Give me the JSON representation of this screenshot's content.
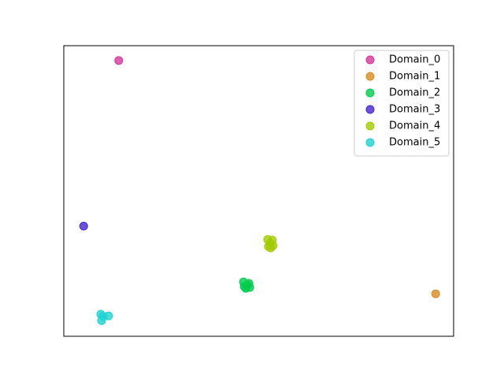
{
  "chart_data": {
    "type": "scatter",
    "xlim": [
      0,
      100
    ],
    "ylim": [
      0,
      100
    ],
    "legend": "upper right",
    "series": [
      {
        "name": "Domain_0",
        "color": "#d6369a",
        "x": [
          14.1
        ],
        "values": [
          94.9
        ]
      },
      {
        "name": "Domain_1",
        "color": "#d98b22",
        "x": [
          95.4
        ],
        "values": [
          14.6
        ]
      },
      {
        "name": "Domain_2",
        "color": "#00cc4e",
        "x": [
          46.1,
          47.5,
          46.7,
          47.7,
          46.3,
          47.1
        ],
        "values": [
          18.7,
          18.2,
          16.5,
          16.8,
          17.1,
          17.6
        ]
      },
      {
        "name": "Domain_3",
        "color": "#4624d4",
        "x": [
          5.1
        ],
        "values": [
          37.9
        ]
      },
      {
        "name": "Domain_4",
        "color": "#a3cc00",
        "x": [
          52.3,
          53.5,
          52.5,
          53.7,
          52.9,
          53.1
        ],
        "values": [
          33.3,
          33.1,
          30.9,
          31.2,
          32.0,
          30.4
        ]
      },
      {
        "name": "Domain_5",
        "color": "#1fd2d2",
        "x": [
          9.5,
          11.5,
          9.7,
          10.1
        ],
        "values": [
          7.6,
          7.0,
          5.4,
          6.8
        ]
      }
    ]
  }
}
